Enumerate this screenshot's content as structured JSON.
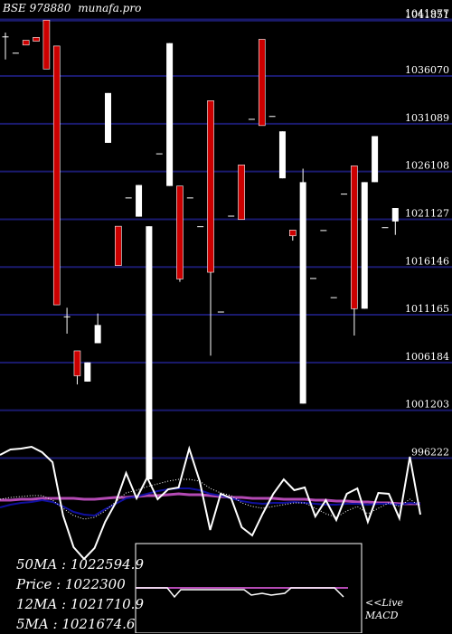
{
  "header": {
    "exchange": "BSE",
    "code": "978880",
    "site": "munafa.pro"
  },
  "chart_data": {
    "type": "candlestick",
    "ylim": [
      994000,
      1044000
    ],
    "y_ticks": [
      {
        "value": 1041977,
        "label": "1041977"
      },
      {
        "value": 1041851,
        "label": "1041851"
      },
      {
        "value": 1036070,
        "label": "1036070"
      },
      {
        "value": 1031089,
        "label": "1031089"
      },
      {
        "value": 1026108,
        "label": "1026108"
      },
      {
        "value": 1021127,
        "label": "1021127"
      },
      {
        "value": 1016146,
        "label": "1016146"
      },
      {
        "value": 1011165,
        "label": "1011165"
      },
      {
        "value": 1006184,
        "label": "1006184"
      },
      {
        "value": 1001203,
        "label": "1001203"
      },
      {
        "value": 996222,
        "label": "996222"
      }
    ],
    "candles": [
      {
        "o": 1040200,
        "c": 1040200,
        "h": 1040600,
        "l": 1037800
      },
      {
        "o": 1038500,
        "c": 1038500,
        "h": 1038500,
        "l": 1038500
      },
      {
        "o": 1039800,
        "c": 1039300,
        "h": 1039800,
        "l": 1039300
      },
      {
        "o": 1040100,
        "c": 1039700,
        "h": 1040100,
        "l": 1039700
      },
      {
        "o": 1041900,
        "c": 1036800,
        "h": 1041900,
        "l": 1036800
      },
      {
        "o": 1039200,
        "c": 1012200,
        "h": 1039200,
        "l": 1012200
      },
      {
        "o": 1011000,
        "c": 1011000,
        "h": 1011900,
        "l": 1009200
      },
      {
        "o": 1007400,
        "c": 1004800,
        "h": 1007400,
        "l": 1003900
      },
      {
        "o": 1004200,
        "c": 1006200,
        "h": 1006200,
        "l": 1004200
      },
      {
        "o": 1008200,
        "c": 1010100,
        "h": 1011300,
        "l": 1008200
      },
      {
        "o": 1029100,
        "c": 1034300,
        "h": 1034300,
        "l": 1029100
      },
      {
        "o": 1020400,
        "c": 1016300,
        "h": 1020400,
        "l": 1016300
      },
      {
        "o": 1023400,
        "c": 1023400,
        "h": 1023400,
        "l": 1023400
      },
      {
        "o": 1021400,
        "c": 1024700,
        "h": 1024700,
        "l": 1021400
      },
      {
        "o": 994000,
        "c": 1020400,
        "h": 1020400,
        "l": 994000
      },
      {
        "o": 1028000,
        "c": 1028000,
        "h": 1028000,
        "l": 1028000
      },
      {
        "o": 1024600,
        "c": 1039500,
        "h": 1039500,
        "l": 1024600
      },
      {
        "o": 1024600,
        "c": 1014900,
        "h": 1024600,
        "l": 1014600
      },
      {
        "o": 1023400,
        "c": 1023400,
        "h": 1023400,
        "l": 1023400
      },
      {
        "o": 1020400,
        "c": 1020400,
        "h": 1020400,
        "l": 1020400
      },
      {
        "o": 1033500,
        "c": 1015600,
        "h": 1033500,
        "l": 1006900
      },
      {
        "o": 1011500,
        "c": 1011500,
        "h": 1011500,
        "l": 1011500
      },
      {
        "o": 1021500,
        "c": 1021500,
        "h": 1021500,
        "l": 1021500
      },
      {
        "o": 1026800,
        "c": 1021100,
        "h": 1026800,
        "l": 1021100
      },
      {
        "o": 1031600,
        "c": 1031600,
        "h": 1031600,
        "l": 1031600
      },
      {
        "o": 1039900,
        "c": 1030900,
        "h": 1039900,
        "l": 1030900
      },
      {
        "o": 1031900,
        "c": 1031900,
        "h": 1031900,
        "l": 1031900
      },
      {
        "o": 1025400,
        "c": 1030300,
        "h": 1030300,
        "l": 1025400
      },
      {
        "o": 1020000,
        "c": 1019400,
        "h": 1020000,
        "l": 1018900
      },
      {
        "o": 1001900,
        "c": 1025000,
        "h": 1026400,
        "l": 1001900
      },
      {
        "o": 1015000,
        "c": 1015000,
        "h": 1015000,
        "l": 1015000
      },
      {
        "o": 1020000,
        "c": 1020000,
        "h": 1020000,
        "l": 1020000
      },
      {
        "o": 1013000,
        "c": 1013000,
        "h": 1013000,
        "l": 1013000
      },
      {
        "o": 1023800,
        "c": 1023800,
        "h": 1023800,
        "l": 1023800
      },
      {
        "o": 1026700,
        "c": 1011800,
        "h": 1026700,
        "l": 1009000
      },
      {
        "o": 1011800,
        "c": 1025000,
        "h": 1025000,
        "l": 1011800
      },
      {
        "o": 1025000,
        "c": 1029800,
        "h": 1029800,
        "l": 1025000
      },
      {
        "o": 1020300,
        "c": 1020300,
        "h": 1020300,
        "l": 1020300
      },
      {
        "o": 1020900,
        "c": 1022300,
        "h": 1022300,
        "l": 1019500
      }
    ],
    "macd_panel": {
      "white_line": [
        503,
        497,
        496,
        494,
        500,
        511,
        570,
        605,
        618,
        606,
        577,
        556,
        523,
        551,
        528,
        552,
        541,
        539,
        496,
        532,
        586,
        546,
        551,
        583,
        592,
        568,
        546,
        530,
        542,
        539,
        571,
        553,
        575,
        546,
        540,
        577,
        545,
        546,
        573,
        505,
        569
      ],
      "navy_line": [
        561,
        558,
        556,
        555,
        553,
        555,
        560,
        566,
        569,
        570,
        563,
        557,
        551,
        549,
        546,
        543,
        541,
        540,
        540,
        542,
        546,
        548,
        551,
        554,
        556,
        557,
        556,
        556,
        555,
        556,
        557,
        558,
        558,
        557,
        557,
        558,
        557,
        557,
        558,
        556,
        557
      ],
      "dotted_line": [
        552,
        550,
        549,
        548,
        548,
        553,
        562,
        570,
        574,
        572,
        565,
        555,
        545,
        542,
        538,
        535,
        532,
        530,
        530,
        532,
        540,
        545,
        548,
        556,
        560,
        562,
        560,
        558,
        556,
        556,
        562,
        568,
        572,
        565,
        560,
        568,
        562,
        556,
        560,
        552,
        560
      ],
      "pink_line": [
        553,
        553,
        552,
        552,
        551,
        551,
        551,
        551,
        552,
        552,
        551,
        550,
        550,
        549,
        548,
        548,
        547,
        546,
        547,
        547,
        548,
        549,
        550,
        550,
        551,
        551,
        551,
        552,
        552,
        552,
        553,
        553,
        554,
        554,
        555,
        555,
        556,
        556,
        557,
        557,
        557
      ]
    }
  },
  "info": {
    "ma50": "50MA : 1022594.9",
    "price": "Price  : 1022300",
    "ma12": "12MA : 1021710.9",
    "ma5": "5MA : 1021674.6"
  },
  "macd_label": {
    "line1": "<<Live",
    "line2": "MACD"
  },
  "colors": {
    "up": "#ffffff",
    "down": "#cc0000",
    "grid": "#1a1a6e",
    "navy": "#1010a0",
    "pink": "#b44ab4",
    "bg": "#000000"
  }
}
